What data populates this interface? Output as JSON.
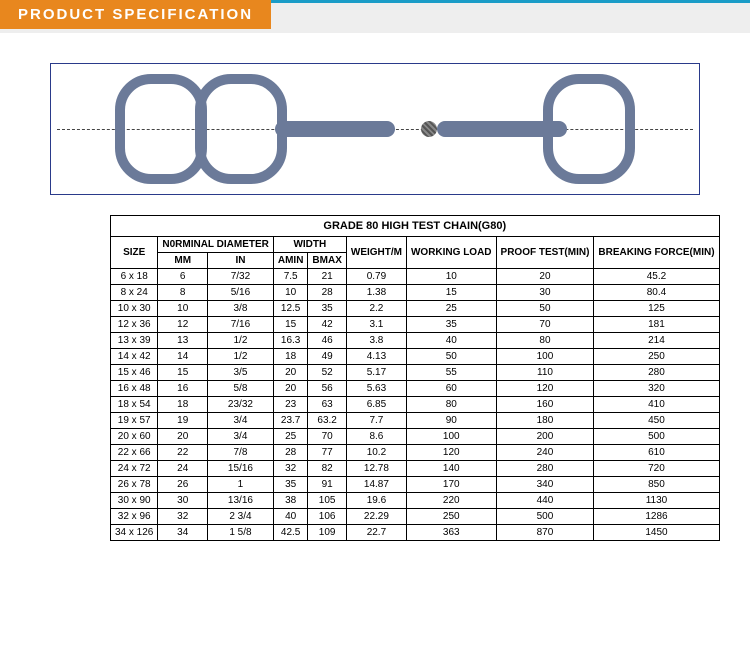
{
  "header": {
    "title": "PRODUCT  SPECIFICATION"
  },
  "table": {
    "title": "GRADE 80 HIGH TEST CHAIN(G80)",
    "group_headers": {
      "size": "SIZE",
      "nominal": "N0RMINAL DIAMETER",
      "width": "WIDTH",
      "weight": "WEIGHT/M",
      "working": "WORKING LOAD",
      "proof": "PROOF TEST(MIN)",
      "breaking": "BREAKING FORCE(MIN)"
    },
    "sub_headers": {
      "mm": "MM",
      "in": "IN",
      "amin": "AMIN",
      "bmax": "BMAX"
    },
    "rows": [
      {
        "size": "6 x 18",
        "mm": "6",
        "in": "7/32",
        "amin": "7.5",
        "bmax": "21",
        "weight": "0.79",
        "working": "10",
        "proof": "20",
        "breaking": "45.2"
      },
      {
        "size": "8 x 24",
        "mm": "8",
        "in": "5/16",
        "amin": "10",
        "bmax": "28",
        "weight": "1.38",
        "working": "15",
        "proof": "30",
        "breaking": "80.4"
      },
      {
        "size": "10 x 30",
        "mm": "10",
        "in": "3/8",
        "amin": "12.5",
        "bmax": "35",
        "weight": "2.2",
        "working": "25",
        "proof": "50",
        "breaking": "125"
      },
      {
        "size": "12 x 36",
        "mm": "12",
        "in": "7/16",
        "amin": "15",
        "bmax": "42",
        "weight": "3.1",
        "working": "35",
        "proof": "70",
        "breaking": "181"
      },
      {
        "size": "13 x 39",
        "mm": "13",
        "in": "1/2",
        "amin": "16.3",
        "bmax": "46",
        "weight": "3.8",
        "working": "40",
        "proof": "80",
        "breaking": "214"
      },
      {
        "size": "14 x 42",
        "mm": "14",
        "in": "1/2",
        "amin": "18",
        "bmax": "49",
        "weight": "4.13",
        "working": "50",
        "proof": "100",
        "breaking": "250"
      },
      {
        "size": "15 x 46",
        "mm": "15",
        "in": "3/5",
        "amin": "20",
        "bmax": "52",
        "weight": "5.17",
        "working": "55",
        "proof": "110",
        "breaking": "280"
      },
      {
        "size": "16 x 48",
        "mm": "16",
        "in": "5/8",
        "amin": "20",
        "bmax": "56",
        "weight": "5.63",
        "working": "60",
        "proof": "120",
        "breaking": "320"
      },
      {
        "size": "18 x 54",
        "mm": "18",
        "in": "23/32",
        "amin": "23",
        "bmax": "63",
        "weight": "6.85",
        "working": "80",
        "proof": "160",
        "breaking": "410"
      },
      {
        "size": "19 x 57",
        "mm": "19",
        "in": "3/4",
        "amin": "23.7",
        "bmax": "63.2",
        "weight": "7.7",
        "working": "90",
        "proof": "180",
        "breaking": "450"
      },
      {
        "size": "20 x 60",
        "mm": "20",
        "in": "3/4",
        "amin": "25",
        "bmax": "70",
        "weight": "8.6",
        "working": "100",
        "proof": "200",
        "breaking": "500"
      },
      {
        "size": "22 x 66",
        "mm": "22",
        "in": "7/8",
        "amin": "28",
        "bmax": "77",
        "weight": "10.2",
        "working": "120",
        "proof": "240",
        "breaking": "610"
      },
      {
        "size": "24 x 72",
        "mm": "24",
        "in": "15/16",
        "amin": "32",
        "bmax": "82",
        "weight": "12.78",
        "working": "140",
        "proof": "280",
        "breaking": "720"
      },
      {
        "size": "26 x 78",
        "mm": "26",
        "in": "1",
        "amin": "35",
        "bmax": "91",
        "weight": "14.87",
        "working": "170",
        "proof": "340",
        "breaking": "850"
      },
      {
        "size": "30 x 90",
        "mm": "30",
        "in": "13/16",
        "amin": "38",
        "bmax": "105",
        "weight": "19.6",
        "working": "220",
        "proof": "440",
        "breaking": "1130"
      },
      {
        "size": "32 x 96",
        "mm": "32",
        "in": "2 3/4",
        "amin": "40",
        "bmax": "106",
        "weight": "22.29",
        "working": "250",
        "proof": "500",
        "breaking": "1286"
      },
      {
        "size": "34 x 126",
        "mm": "34",
        "in": "1  5/8",
        "amin": "42.5",
        "bmax": "109",
        "weight": "22.7",
        "working": "363",
        "proof": "870",
        "breaking": "1450"
      }
    ]
  }
}
